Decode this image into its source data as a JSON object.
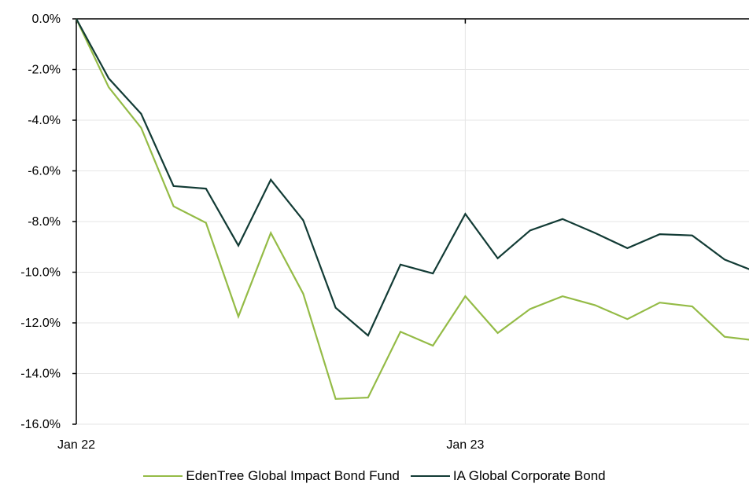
{
  "chart_data": {
    "type": "line",
    "title": "",
    "xlabel": "",
    "ylabel": "",
    "x": [
      "Jan 22",
      "Feb 22",
      "Mar 22",
      "Apr 22",
      "May 22",
      "Jun 22",
      "Jul 22",
      "Aug 22",
      "Sep 22",
      "Oct 22",
      "Nov 22",
      "Dec 22",
      "Jan 23",
      "Feb 23",
      "Mar 23",
      "Apr 23",
      "May 23",
      "Jun 23",
      "Jul 23",
      "Aug 23",
      "Sep 23",
      "Oct 23"
    ],
    "x_tick_labels": [
      {
        "label": "Jan 22",
        "index": 0
      },
      {
        "label": "Jan 23",
        "index": 12
      }
    ],
    "ylim": [
      -16,
      0
    ],
    "y_ticks": [
      0,
      -2,
      -4,
      -6,
      -8,
      -10,
      -12,
      -14,
      -16
    ],
    "y_tick_format": "percent_1dp",
    "grid": "horizontal",
    "legend": "bottom-center",
    "series": [
      {
        "name": "EdenTree Global Impact Bond Fund",
        "color": "#94bb46",
        "values": [
          0,
          -2.7,
          -4.3,
          -7.4,
          -8.05,
          -11.75,
          -8.45,
          -10.85,
          -15.0,
          -14.95,
          -12.35,
          -12.9,
          -10.95,
          -12.4,
          -11.45,
          -10.95,
          -11.3,
          -11.85,
          -11.2,
          -11.35,
          -12.55,
          -12.7
        ]
      },
      {
        "name": "IA Global Corporate Bond",
        "color": "#123b35",
        "values": [
          0,
          -2.35,
          -3.75,
          -6.6,
          -6.7,
          -8.95,
          -6.35,
          -7.95,
          -11.4,
          -12.5,
          -9.7,
          -10.05,
          -7.7,
          -9.45,
          -8.35,
          -7.9,
          -8.45,
          -9.05,
          -8.5,
          -8.55,
          -9.5,
          -10.0
        ]
      }
    ]
  }
}
